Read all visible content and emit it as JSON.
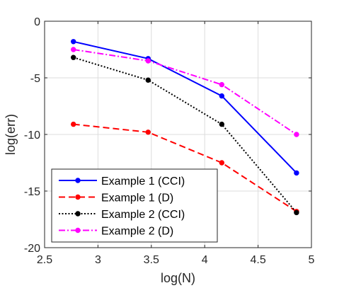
{
  "chart_data": {
    "type": "line",
    "xlabel": "log(N)",
    "ylabel": "log(err)",
    "xlim": [
      2.5,
      5
    ],
    "ylim": [
      -20,
      0
    ],
    "xticks": [
      2.5,
      3,
      3.5,
      4,
      4.5,
      5
    ],
    "yticks": [
      -20,
      -15,
      -10,
      -5,
      0
    ],
    "xtick_labels": [
      "2.5",
      "3",
      "3.5",
      "4",
      "4.5",
      "5"
    ],
    "ytick_labels": [
      "-20",
      "-15",
      "-10",
      "-5",
      "0"
    ],
    "grid": true,
    "legend_position": "bottom-left",
    "x": [
      2.77,
      3.47,
      4.16,
      4.86
    ],
    "series": [
      {
        "name": "Example 1 (CCI)",
        "values": [
          -1.8,
          -3.3,
          -6.6,
          -13.4
        ],
        "color": "#0000ff",
        "line_style": "solid"
      },
      {
        "name": "Example 1 (D)",
        "values": [
          -9.1,
          -9.8,
          -12.5,
          -16.8
        ],
        "color": "#ff0000",
        "line_style": "dashed"
      },
      {
        "name": "Example 2 (CCI)",
        "values": [
          -3.2,
          -5.2,
          -9.1,
          -16.9
        ],
        "color": "#000000",
        "line_style": "dotted"
      },
      {
        "name": "Example 2 (D)",
        "values": [
          -2.5,
          -3.5,
          -5.6,
          -10.0
        ],
        "color": "#ff00ff",
        "line_style": "dashdot"
      }
    ]
  }
}
